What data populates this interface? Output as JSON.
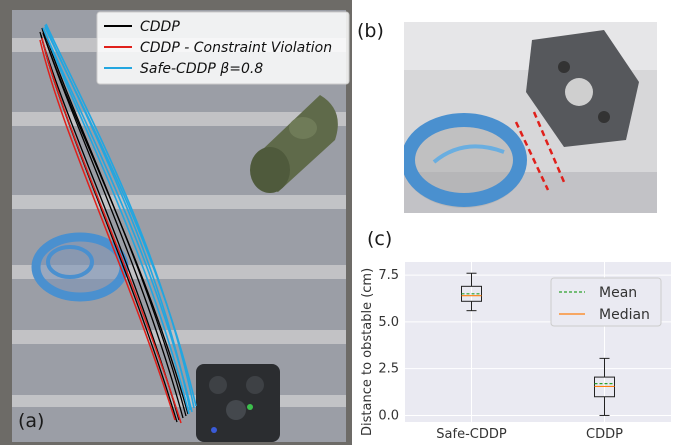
{
  "panels": {
    "a": "(a)",
    "b": "(b)",
    "c": "(c)"
  },
  "trajectory_legend": {
    "entries": [
      {
        "label": "CDDP",
        "color": "#000000"
      },
      {
        "label": "CDDP - Constraint Violation",
        "color": "#e0201b"
      },
      {
        "label": "Safe-CDDP β=0.8",
        "color": "#23a6e0"
      }
    ]
  },
  "colors": {
    "mat_green": "#5f6a4a",
    "ring_blue": "#4a90cf",
    "floor_gray": "#9a9ea8",
    "floor_stripe": "#c8c8c8",
    "chart_bg": "#eaeaf2",
    "mean_line": "#2ca02c",
    "median_line": "#ff7f0e",
    "safety_line": "#e0201b"
  },
  "chart_data": {
    "type": "box",
    "categories": [
      "Safe-CDDP",
      "CDDP"
    ],
    "ylabel": "Distance to obstable (cm)",
    "ylim": [
      -0.35,
      8.2
    ],
    "yticks": [
      "0.0",
      "2.5",
      "5.0",
      "7.5"
    ],
    "ytick_values": [
      0.0,
      2.5,
      5.0,
      7.5
    ],
    "grid": true,
    "legend_position": "top-right",
    "legend": [
      {
        "label": "Mean",
        "style": "dashed",
        "color": "#2ca02c"
      },
      {
        "label": "Median",
        "style": "solid",
        "color": "#ff7f0e"
      }
    ],
    "boxes": [
      {
        "name": "Safe-CDDP",
        "min": 5.6,
        "q1": 6.1,
        "median": 6.4,
        "mean": 6.5,
        "q3": 6.9,
        "max": 7.6
      },
      {
        "name": "CDDP",
        "min": 0.0,
        "q1": 1.0,
        "median": 1.55,
        "mean": 1.7,
        "q3": 2.05,
        "max": 3.05
      }
    ]
  }
}
